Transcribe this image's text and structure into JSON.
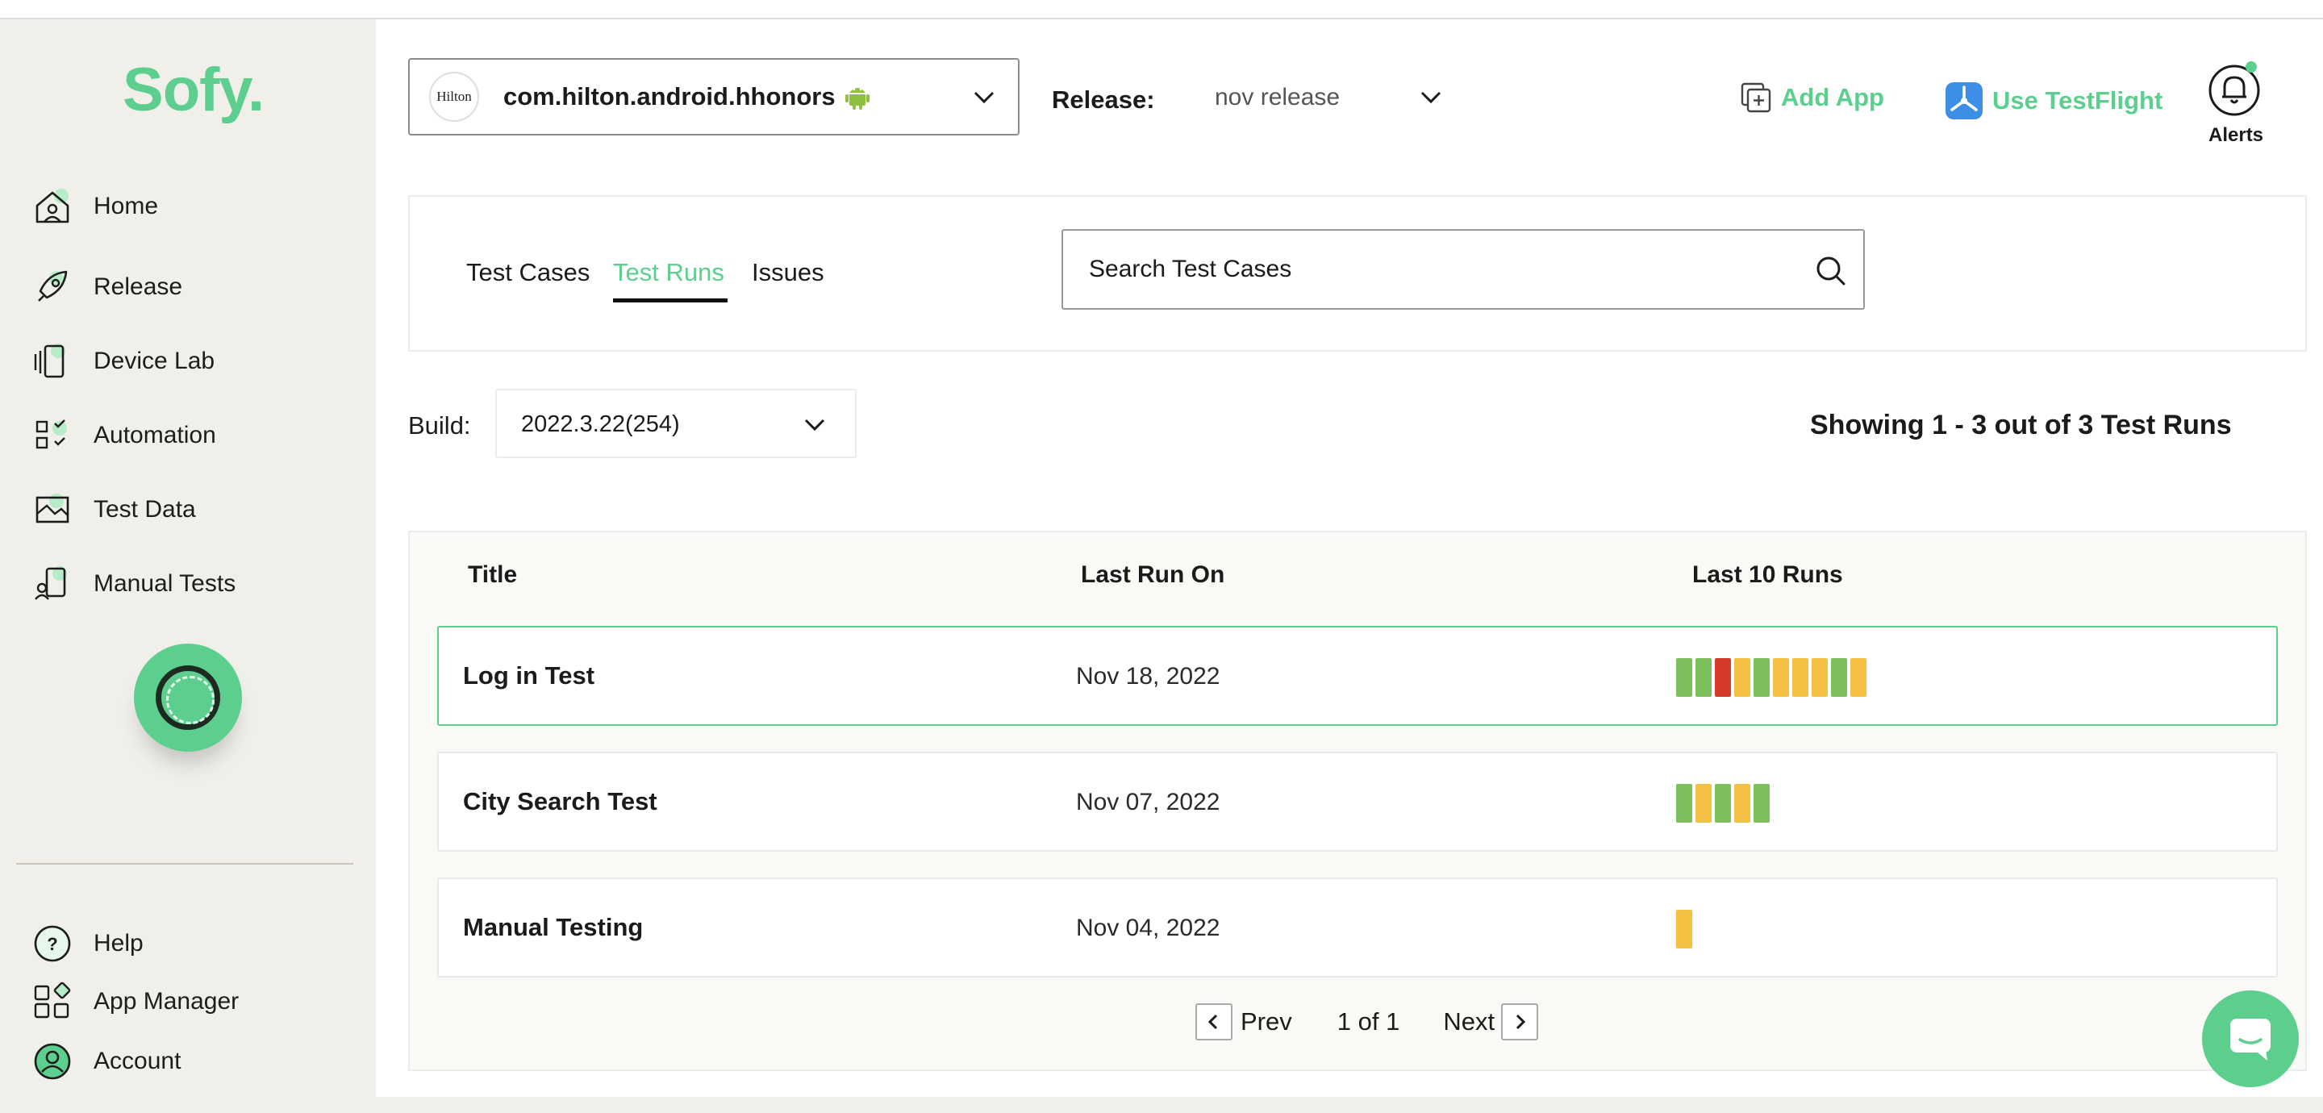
{
  "brand": {
    "logo_text": "Sofy."
  },
  "sidebar": {
    "items": [
      {
        "label": "Home",
        "icon": "home-icon"
      },
      {
        "label": "Release",
        "icon": "rocket-icon"
      },
      {
        "label": "Device Lab",
        "icon": "device-icon"
      },
      {
        "label": "Automation",
        "icon": "automation-icon"
      },
      {
        "label": "Test Data",
        "icon": "test-data-icon"
      },
      {
        "label": "Manual Tests",
        "icon": "manual-tests-icon"
      }
    ],
    "bottom_items": [
      {
        "label": "Help",
        "icon": "help-icon"
      },
      {
        "label": "App Manager",
        "icon": "app-manager-icon"
      },
      {
        "label": "Account",
        "icon": "account-icon"
      }
    ]
  },
  "header": {
    "app_logo_text": "Hilton",
    "app_name": "com.hilton.android.hhonors",
    "release_label": "Release:",
    "release_value": "nov release",
    "add_app_label": "Add App",
    "testflight_label": "Use TestFlight",
    "alerts_label": "Alerts"
  },
  "tabs": [
    {
      "label": "Test Cases",
      "active": false
    },
    {
      "label": "Test Runs",
      "active": true
    },
    {
      "label": "Issues",
      "active": false
    }
  ],
  "search": {
    "placeholder": "Search Test Cases"
  },
  "build": {
    "label": "Build:",
    "value": "2022.3.22(254)"
  },
  "showing_text": "Showing 1 - 3 out of 3 Test Runs",
  "table": {
    "headers": {
      "title": "Title",
      "last_run_on": "Last Run On",
      "last_10_runs": "Last 10 Runs"
    },
    "rows": [
      {
        "title": "Log in Test",
        "last_run_on": "Nov 18, 2022",
        "runs": [
          "pass",
          "pass",
          "fail",
          "warn",
          "pass",
          "warn",
          "warn",
          "warn",
          "pass",
          "warn"
        ]
      },
      {
        "title": "City Search Test",
        "last_run_on": "Nov 07, 2022",
        "runs": [
          "pass",
          "warn",
          "pass",
          "warn",
          "pass"
        ]
      },
      {
        "title": "Manual Testing",
        "last_run_on": "Nov 04, 2022",
        "runs": [
          "warn"
        ]
      }
    ]
  },
  "status_colors": {
    "pass": "#7bbf5a",
    "fail": "#d63a2b",
    "warn": "#f5c142"
  },
  "pagination": {
    "prev_label": "Prev",
    "page_text": "1 of 1",
    "next_label": "Next"
  },
  "colors": {
    "accent": "#5ccf8e",
    "sidebar_bg": "#f1efea"
  }
}
